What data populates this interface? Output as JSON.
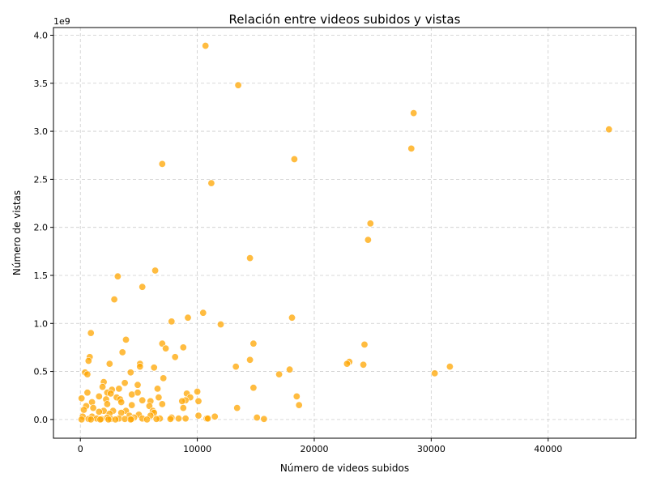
{
  "chart_data": {
    "type": "scatter",
    "title": "Relación entre videos subidos y vistas",
    "xlabel": "Número de videos subidos",
    "ylabel": "Número de vistas",
    "y_offset_label": "1e9",
    "xlim": [
      -2300,
      47500
    ],
    "ylim": [
      -0.195,
      4.08
    ],
    "x_ticks": [
      0,
      10000,
      20000,
      30000,
      40000
    ],
    "x_tick_labels": [
      "0",
      "10000",
      "20000",
      "30000",
      "40000"
    ],
    "y_ticks": [
      0.0,
      0.5,
      1.0,
      1.5,
      2.0,
      2.5,
      3.0,
      3.5,
      4.0
    ],
    "y_tick_labels": [
      "0.0",
      "0.5",
      "1.0",
      "1.5",
      "2.0",
      "2.5",
      "3.0",
      "3.5",
      "4.0"
    ],
    "y_unit": "1e9 views",
    "grid": true,
    "marker_color": "#ffa500",
    "marker_opacity": 0.75,
    "points": [
      [
        10700,
        3.89
      ],
      [
        13500,
        3.48
      ],
      [
        28500,
        3.19
      ],
      [
        45200,
        3.02
      ],
      [
        28300,
        2.82
      ],
      [
        18300,
        2.71
      ],
      [
        7000,
        2.66
      ],
      [
        11200,
        2.46
      ],
      [
        24800,
        2.04
      ],
      [
        24600,
        1.87
      ],
      [
        14500,
        1.68
      ],
      [
        6400,
        1.55
      ],
      [
        3200,
        1.49
      ],
      [
        5300,
        1.38
      ],
      [
        2900,
        1.25
      ],
      [
        10500,
        1.11
      ],
      [
        18100,
        1.06
      ],
      [
        9200,
        1.06
      ],
      [
        7800,
        1.02
      ],
      [
        12000,
        0.99
      ],
      [
        900,
        0.9
      ],
      [
        3900,
        0.83
      ],
      [
        14800,
        0.79
      ],
      [
        24300,
        0.78
      ],
      [
        7000,
        0.79
      ],
      [
        8800,
        0.75
      ],
      [
        7300,
        0.74
      ],
      [
        3600,
        0.7
      ],
      [
        800,
        0.65
      ],
      [
        700,
        0.61
      ],
      [
        8100,
        0.65
      ],
      [
        14500,
        0.62
      ],
      [
        23000,
        0.6
      ],
      [
        22800,
        0.58
      ],
      [
        24200,
        0.57
      ],
      [
        5100,
        0.58
      ],
      [
        2500,
        0.58
      ],
      [
        13300,
        0.55
      ],
      [
        31600,
        0.55
      ],
      [
        5100,
        0.55
      ],
      [
        6300,
        0.54
      ],
      [
        17900,
        0.52
      ],
      [
        17000,
        0.47
      ],
      [
        30300,
        0.48
      ],
      [
        400,
        0.49
      ],
      [
        600,
        0.47
      ],
      [
        4300,
        0.49
      ],
      [
        7100,
        0.43
      ],
      [
        3800,
        0.38
      ],
      [
        2000,
        0.39
      ],
      [
        4900,
        0.36
      ],
      [
        1900,
        0.34
      ],
      [
        14800,
        0.33
      ],
      [
        6600,
        0.32
      ],
      [
        2700,
        0.31
      ],
      [
        3300,
        0.32
      ],
      [
        600,
        0.28
      ],
      [
        2300,
        0.28
      ],
      [
        4900,
        0.28
      ],
      [
        2600,
        0.27
      ],
      [
        4400,
        0.26
      ],
      [
        9100,
        0.27
      ],
      [
        10000,
        0.29
      ],
      [
        18500,
        0.24
      ],
      [
        6700,
        0.23
      ],
      [
        9400,
        0.23
      ],
      [
        1600,
        0.24
      ],
      [
        3100,
        0.23
      ],
      [
        2200,
        0.21
      ],
      [
        3400,
        0.21
      ],
      [
        100,
        0.22
      ],
      [
        9000,
        0.2
      ],
      [
        5300,
        0.2
      ],
      [
        6000,
        0.19
      ],
      [
        8700,
        0.19
      ],
      [
        10100,
        0.19
      ],
      [
        3500,
        0.18
      ],
      [
        1000,
        0.18
      ],
      [
        2300,
        0.16
      ],
      [
        7000,
        0.16
      ],
      [
        4400,
        0.15
      ],
      [
        18700,
        0.15
      ],
      [
        500,
        0.14
      ],
      [
        5900,
        0.14
      ],
      [
        13400,
        0.12
      ],
      [
        8800,
        0.12
      ],
      [
        1100,
        0.12
      ],
      [
        300,
        0.1
      ],
      [
        6200,
        0.09
      ],
      [
        2000,
        0.09
      ],
      [
        2800,
        0.09
      ],
      [
        3900,
        0.09
      ],
      [
        1600,
        0.08
      ],
      [
        6300,
        0.07
      ],
      [
        3500,
        0.07
      ],
      [
        2500,
        0.06
      ],
      [
        5000,
        0.05
      ],
      [
        4200,
        0.04
      ],
      [
        10100,
        0.04
      ],
      [
        6000,
        0.04
      ],
      [
        1000,
        0.03
      ],
      [
        200,
        0.03
      ],
      [
        11500,
        0.03
      ],
      [
        2300,
        0.02
      ],
      [
        4600,
        0.02
      ],
      [
        7800,
        0.02
      ],
      [
        15100,
        0.02
      ],
      [
        8400,
        0.01
      ],
      [
        10800,
        0.01
      ],
      [
        5300,
        0.01
      ],
      [
        3300,
        0.01
      ],
      [
        6800,
        0.01
      ],
      [
        1400,
        0.01
      ],
      [
        700,
        0.005
      ],
      [
        9000,
        0.01
      ],
      [
        10900,
        0.01
      ],
      [
        15700,
        0.005
      ],
      [
        2600,
        0.005
      ],
      [
        4400,
        0.005
      ],
      [
        3800,
        0.005
      ],
      [
        1800,
        0.005
      ],
      [
        6500,
        0.005
      ],
      [
        7700,
        0.005
      ],
      [
        100,
        0.0
      ],
      [
        900,
        0.0
      ],
      [
        1700,
        0.0
      ],
      [
        3000,
        0.0
      ],
      [
        4300,
        0.0
      ],
      [
        5700,
        0.0
      ],
      [
        2400,
        0.0
      ]
    ]
  }
}
